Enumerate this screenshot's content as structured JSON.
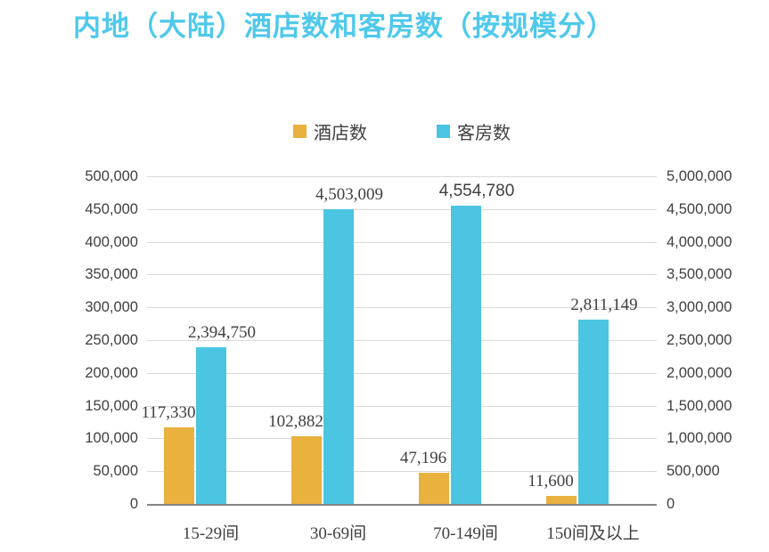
{
  "colors": {
    "title": "#4FC8EB",
    "hotel_series": "#E9B13E",
    "rooms_series": "#4BC5E1",
    "gridline": "#D9D9D9",
    "axis_line": "#848484",
    "text": "#3F3F3F"
  },
  "chart_data": {
    "type": "bar",
    "title": "内地（大陆）酒店数和客房数（按规模分）",
    "categories": [
      "15-29间",
      "30-69间",
      "70-149间",
      "150间及以上"
    ],
    "series": [
      {
        "name": "酒店数",
        "axis": "left",
        "color": "#E9B13E",
        "values": [
          117330,
          102882,
          47196,
          11600
        ],
        "labels": [
          "117,330",
          "102,882",
          "47,196",
          "11,600"
        ]
      },
      {
        "name": "客房数",
        "axis": "right",
        "color": "#4BC5E1",
        "values": [
          2394750,
          4503009,
          4554780,
          2811149
        ],
        "labels": [
          "2,394,750",
          "4,503,009",
          "4,554,780",
          "2,811,149"
        ]
      }
    ],
    "left_axis": {
      "min": 0,
      "max": 500000,
      "step": 50000,
      "ticks": [
        "500,000",
        "450,000",
        "400,000",
        "350,000",
        "300,000",
        "250,000",
        "200,000",
        "150,000",
        "100,000",
        "50,000",
        "0"
      ]
    },
    "right_axis": {
      "min": 0,
      "max": 5000000,
      "step": 500000,
      "ticks": [
        "5,000,000",
        "4,500,000",
        "4,000,000",
        "3,500,000",
        "3,000,000",
        "2,500,000",
        "2,000,000",
        "1,500,000",
        "1,000,000",
        "500,000",
        "0"
      ]
    },
    "legend_position": "top",
    "grid": "horizontal"
  }
}
